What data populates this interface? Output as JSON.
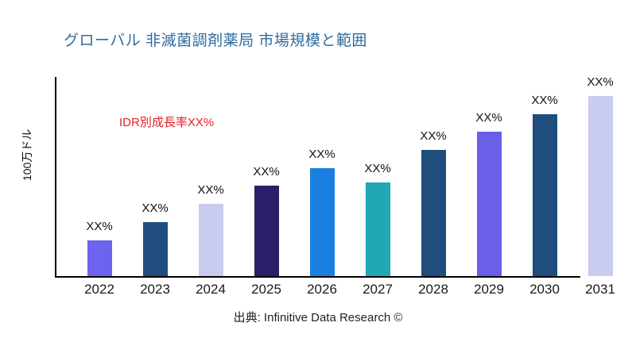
{
  "title": "グローバル 非滅菌調剤薬局 市場規模と範囲",
  "title_color": "#2E6B9E",
  "y_axis_label": "100万ドル",
  "annotation": {
    "text": "IDR別成長率XX%",
    "color": "#E32128"
  },
  "source": "出典: Infinitive Data Research ©",
  "chart_data": {
    "type": "bar",
    "title": "グローバル 非滅菌調剤薬局 市場規模と範囲",
    "ylabel": "100万ドル",
    "xlabel": "",
    "categories": [
      "2022",
      "2023",
      "2024",
      "2025",
      "2026",
      "2027",
      "2028",
      "2029",
      "2030",
      "2031"
    ],
    "bar_labels": [
      "XX%",
      "XX%",
      "XX%",
      "XX%",
      "XX%",
      "XX%",
      "XX%",
      "XX%",
      "XX%",
      "XX%"
    ],
    "values_relative_pct_of_max": [
      20,
      30,
      40,
      50,
      60,
      52,
      70,
      80,
      90,
      100
    ],
    "bar_colors": [
      "#6C63EE",
      "#1F4E7E",
      "#C9CCF0",
      "#292069",
      "#1A7FE3",
      "#22A7B5",
      "#1F4E7E",
      "#6B5EE8",
      "#1F4E7E",
      "#C9CCF0"
    ],
    "annotation": "IDR別成長率XX%",
    "grid": false,
    "legend": false,
    "numeric_axis_ticks_visible": false
  }
}
